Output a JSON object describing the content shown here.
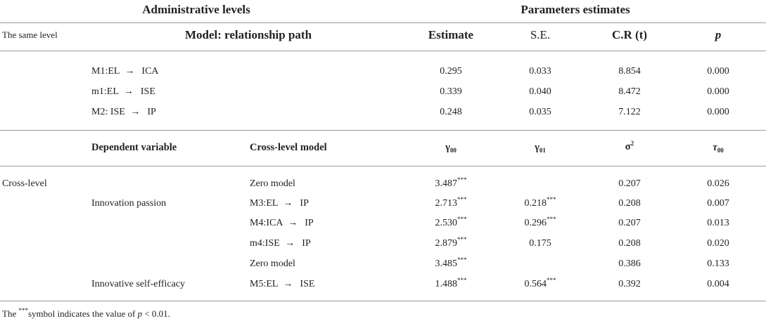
{
  "header": {
    "administrative_levels": "Administrative levels",
    "parameters_estimates": "Parameters estimates",
    "same_level": "The same level",
    "model_path": "Model: relationship path",
    "estimate": "Estimate",
    "se": "S.E.",
    "cr": "C.R (t)",
    "p": "p"
  },
  "same_level_rows": [
    {
      "model": "M1:EL",
      "target": "ICA",
      "estimate": "0.295",
      "se": "0.033",
      "cr": "8.854",
      "p": "0.000"
    },
    {
      "model": "m1:EL",
      "target": "ISE",
      "estimate": "0.339",
      "se": "0.040",
      "cr": "8.472",
      "p": "0.000"
    },
    {
      "model": "M2: ISE",
      "target": "IP",
      "estimate": "0.248",
      "se": "0.035",
      "cr": "7.122",
      "p": "0.000"
    }
  ],
  "cross_header": {
    "dependent_variable": "Dependent variable",
    "cross_level_model": "Cross-level model",
    "gamma00_base": "γ",
    "gamma00_sub": "00",
    "gamma01_base": "γ",
    "gamma01_sub": "01",
    "sigma_base": "σ",
    "sigma_sup": "2",
    "tau_base": "τ",
    "tau_sub": "00"
  },
  "cross_level_label": "Cross-level",
  "dependent_variables": {
    "innovation_passion": "Innovation passion",
    "innovative_self_efficacy": "Innovative self-efficacy"
  },
  "cross_rows": [
    {
      "model": "Zero model",
      "target": "",
      "g00": "3.487",
      "g00_sig": "***",
      "g01": "",
      "g01_sig": "",
      "sigma2": "0.207",
      "tau00": "0.026"
    },
    {
      "model": "M3:EL",
      "target": "IP",
      "g00": "2.713",
      "g00_sig": "***",
      "g01": "0.218",
      "g01_sig": "***",
      "sigma2": "0.208",
      "tau00": "0.007"
    },
    {
      "model": "M4:ICA",
      "target": "IP",
      "g00": "2.530",
      "g00_sig": "***",
      "g01": "0.296",
      "g01_sig": "***",
      "sigma2": "0.207",
      "tau00": "0.013"
    },
    {
      "model": "m4:ISE",
      "target": "IP",
      "g00": "2.879",
      "g00_sig": "***",
      "g01": "0.175",
      "g01_sig": "",
      "sigma2": "0.208",
      "tau00": "0.020"
    },
    {
      "model": "Zero model",
      "target": "",
      "g00": "3.485",
      "g00_sig": "***",
      "g01": "",
      "g01_sig": "",
      "sigma2": "0.386",
      "tau00": "0.133"
    },
    {
      "model": "M5:EL",
      "target": "ISE",
      "g00": "1.488",
      "g00_sig": "***",
      "g01": "0.564",
      "g01_sig": "***",
      "sigma2": "0.392",
      "tau00": "0.004"
    }
  ],
  "arrow_glyph": "→",
  "footnote": {
    "prefix": "The ",
    "stars": "***",
    "middle": "symbol indicates the value of ",
    "p": "p",
    "suffix": " < 0.01."
  }
}
